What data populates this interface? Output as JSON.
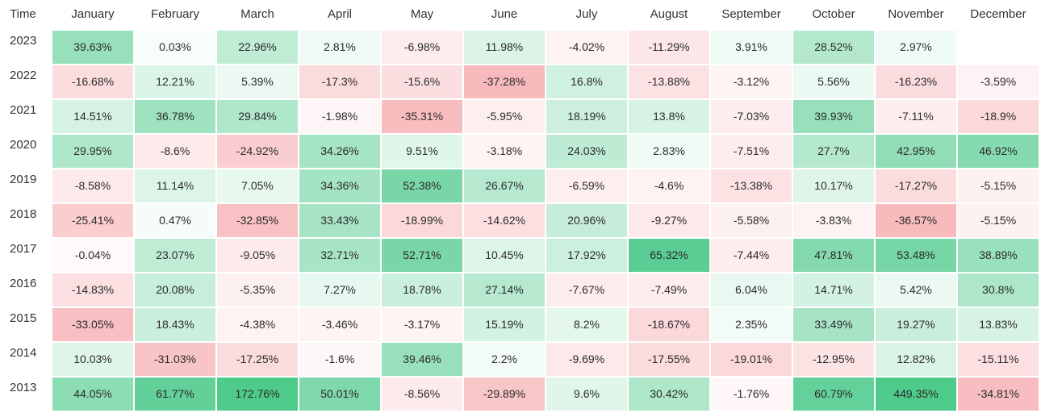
{
  "chart_data": {
    "type": "heatmap",
    "corner_label": "Time",
    "columns": [
      "January",
      "February",
      "March",
      "April",
      "May",
      "June",
      "July",
      "August",
      "September",
      "October",
      "November",
      "December"
    ],
    "rows": [
      "2023",
      "2022",
      "2021",
      "2020",
      "2019",
      "2018",
      "2017",
      "2016",
      "2015",
      "2014",
      "2013"
    ],
    "values": [
      [
        "39.63%",
        "0.03%",
        "22.96%",
        "2.81%",
        "-6.98%",
        "11.98%",
        "-4.02%",
        "-11.29%",
        "3.91%",
        "28.52%",
        "2.97%",
        ""
      ],
      [
        "-16.68%",
        "12.21%",
        "5.39%",
        "-17.3%",
        "-15.6%",
        "-37.28%",
        "16.8%",
        "-13.88%",
        "-3.12%",
        "5.56%",
        "-16.23%",
        "-3.59%"
      ],
      [
        "14.51%",
        "36.78%",
        "29.84%",
        "-1.98%",
        "-35.31%",
        "-5.95%",
        "18.19%",
        "13.8%",
        "-7.03%",
        "39.93%",
        "-7.11%",
        "-18.9%"
      ],
      [
        "29.95%",
        "-8.6%",
        "-24.92%",
        "34.26%",
        "9.51%",
        "-3.18%",
        "24.03%",
        "2.83%",
        "-7.51%",
        "27.7%",
        "42.95%",
        "46.92%"
      ],
      [
        "-8.58%",
        "11.14%",
        "7.05%",
        "34.36%",
        "52.38%",
        "26.67%",
        "-6.59%",
        "-4.6%",
        "-13.38%",
        "10.17%",
        "-17.27%",
        "-5.15%"
      ],
      [
        "-25.41%",
        "0.47%",
        "-32.85%",
        "33.43%",
        "-18.99%",
        "-14.62%",
        "20.96%",
        "-9.27%",
        "-5.58%",
        "-3.83%",
        "-36.57%",
        "-5.15%"
      ],
      [
        "-0.04%",
        "23.07%",
        "-9.05%",
        "32.71%",
        "52.71%",
        "10.45%",
        "17.92%",
        "65.32%",
        "-7.44%",
        "47.81%",
        "53.48%",
        "38.89%"
      ],
      [
        "-14.83%",
        "20.08%",
        "-5.35%",
        "7.27%",
        "18.78%",
        "27.14%",
        "-7.67%",
        "-7.49%",
        "6.04%",
        "14.71%",
        "5.42%",
        "30.8%"
      ],
      [
        "-33.05%",
        "18.43%",
        "-4.38%",
        "-3.46%",
        "-3.17%",
        "15.19%",
        "8.2%",
        "-18.67%",
        "2.35%",
        "33.49%",
        "19.27%",
        "13.83%"
      ],
      [
        "10.03%",
        "-31.03%",
        "-17.25%",
        "-1.6%",
        "39.46%",
        "2.2%",
        "-9.69%",
        "-17.55%",
        "-19.01%",
        "-12.95%",
        "12.82%",
        "-15.11%"
      ],
      [
        "44.05%",
        "61.77%",
        "172.76%",
        "50.01%",
        "-8.56%",
        "-29.89%",
        "9.6%",
        "30.42%",
        "-1.76%",
        "60.79%",
        "449.35%",
        "-34.81%"
      ]
    ],
    "colors": {
      "positive": "#4cc98a",
      "negative": "#f5a3a6",
      "neutral": "#ffffff",
      "grid": "#ffffff"
    }
  }
}
